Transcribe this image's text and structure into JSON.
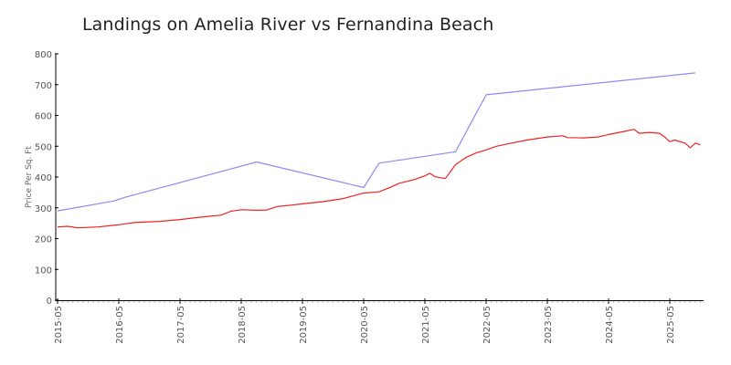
{
  "chart": {
    "title": "Landings on Amelia River vs Fernandina Beach",
    "ylabel": "Price Per Sq. Ft",
    "colors": {
      "series_a": "#8c8cf0",
      "series_b": "#ee2222",
      "axis": "#000000",
      "text": "#555555"
    }
  },
  "chart_data": {
    "type": "line",
    "title": "Landings on Amelia River vs Fernandina Beach",
    "xlabel": "",
    "ylabel": "Price Per Sq. Ft",
    "ylim": [
      0,
      800
    ],
    "yticks": [
      0,
      100,
      200,
      300,
      400,
      500,
      600,
      700,
      800
    ],
    "xticks": [
      "2015-05",
      "2016-05",
      "2017-05",
      "2018-05",
      "2019-05",
      "2020-05",
      "2021-05",
      "2022-05",
      "2023-05",
      "2024-05",
      "2025-05"
    ],
    "grid": false,
    "legend": "none",
    "series": [
      {
        "name": "Fernandina Beach",
        "color": "#8c8cf0",
        "points": [
          [
            "2015-05",
            290
          ],
          [
            "2016-04",
            322
          ],
          [
            "2016-06",
            333
          ],
          [
            "2018-08",
            449
          ],
          [
            "2020-05",
            366
          ],
          [
            "2020-08",
            445
          ],
          [
            "2021-11",
            482
          ],
          [
            "2022-05",
            667
          ],
          [
            "2025-10",
            738
          ]
        ]
      },
      {
        "name": "Landings on Amelia River",
        "color": "#ee2222",
        "points": [
          [
            "2015-05",
            238
          ],
          [
            "2015-07",
            240
          ],
          [
            "2015-09",
            235
          ],
          [
            "2016-01",
            238
          ],
          [
            "2016-05",
            245
          ],
          [
            "2016-08",
            252
          ],
          [
            "2017-01",
            256
          ],
          [
            "2017-05",
            262
          ],
          [
            "2017-08",
            268
          ],
          [
            "2017-11",
            273
          ],
          [
            "2018-01",
            276
          ],
          [
            "2018-03",
            289
          ],
          [
            "2018-05",
            294
          ],
          [
            "2018-08",
            292
          ],
          [
            "2018-10",
            293
          ],
          [
            "2018-12",
            304
          ],
          [
            "2019-03",
            309
          ],
          [
            "2019-05",
            313
          ],
          [
            "2019-09",
            320
          ],
          [
            "2020-01",
            330
          ],
          [
            "2020-05",
            348
          ],
          [
            "2020-08",
            352
          ],
          [
            "2020-10",
            365
          ],
          [
            "2020-12",
            380
          ],
          [
            "2021-03",
            392
          ],
          [
            "2021-05",
            404
          ],
          [
            "2021-06",
            412
          ],
          [
            "2021-07",
            401
          ],
          [
            "2021-09",
            395
          ],
          [
            "2021-11",
            440
          ],
          [
            "2022-01",
            463
          ],
          [
            "2022-03",
            478
          ],
          [
            "2022-05",
            488
          ],
          [
            "2022-07",
            500
          ],
          [
            "2022-09",
            507
          ],
          [
            "2023-01",
            520
          ],
          [
            "2023-05",
            530
          ],
          [
            "2023-08",
            534
          ],
          [
            "2023-09",
            528
          ],
          [
            "2023-12",
            527
          ],
          [
            "2024-03",
            530
          ],
          [
            "2024-05",
            538
          ],
          [
            "2024-08",
            548
          ],
          [
            "2024-10",
            555
          ],
          [
            "2024-11",
            542
          ],
          [
            "2025-01",
            545
          ],
          [
            "2025-03",
            542
          ],
          [
            "2025-04",
            530
          ],
          [
            "2025-05",
            515
          ],
          [
            "2025-06",
            520
          ],
          [
            "2025-08",
            510
          ],
          [
            "2025-09",
            495
          ],
          [
            "2025-10",
            510
          ],
          [
            "2025-11",
            505
          ]
        ]
      }
    ]
  }
}
